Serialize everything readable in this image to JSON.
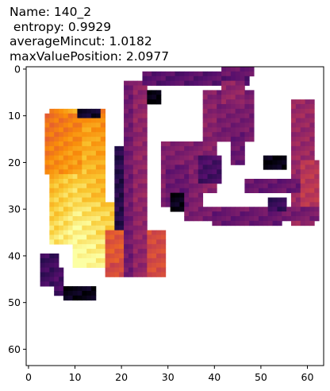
{
  "title_lines": [
    "Name: 140_2",
    " entropy: 0.9929",
    "averageMincut: 1.0182",
    "maxValuePosition: 2.0977"
  ],
  "chart_data": {
    "type": "heatmap",
    "colormap": "inferno",
    "grid_size": [
      64,
      64
    ],
    "x_axis": {
      "ticks": [
        0,
        10,
        20,
        30,
        40,
        50,
        60
      ],
      "range": [
        -0.5,
        63.5
      ]
    },
    "y_axis": {
      "ticks": [
        0,
        10,
        20,
        30,
        40,
        50,
        60
      ],
      "range": [
        -0.5,
        63.5
      ],
      "inverted": true
    },
    "grid": false,
    "background": "#ffffff",
    "regions": [
      {
        "name": "yellow-body",
        "x": [
          5,
          16
        ],
        "y": [
          9,
          37
        ],
        "value": 0.8
      },
      {
        "name": "yellow-upper",
        "x": [
          4,
          11
        ],
        "y": [
          10,
          22
        ],
        "value": 0.72
      },
      {
        "name": "yellow-lower",
        "x": [
          10,
          19
        ],
        "y": [
          29,
          42
        ],
        "value": 0.82
      },
      {
        "name": "orange-block",
        "x": [
          17,
          29
        ],
        "y": [
          35,
          44
        ],
        "value": 0.58
      },
      {
        "name": "orange-patch",
        "x": [
          17,
          23
        ],
        "y": [
          35,
          41
        ],
        "value": 0.62
      },
      {
        "name": "left-dark-bar",
        "x": [
          3,
          6
        ],
        "y": [
          40,
          46
        ],
        "value": 0.2
      },
      {
        "name": "left-dark-bar-2",
        "x": [
          6,
          7
        ],
        "y": [
          43,
          48
        ],
        "value": 0.22
      },
      {
        "name": "bottom-dark",
        "x": [
          8,
          14
        ],
        "y": [
          47,
          49
        ],
        "value": 0.04
      },
      {
        "name": "top-dark",
        "x": [
          11,
          15
        ],
        "y": [
          9,
          10
        ],
        "value": 0.08
      },
      {
        "name": "column-a",
        "x": [
          21,
          23
        ],
        "y": [
          3,
          44
        ],
        "value": 0.32
      },
      {
        "name": "column-b",
        "x": [
          23,
          25
        ],
        "y": [
          3,
          44
        ],
        "value": 0.4
      },
      {
        "name": "column-c",
        "x": [
          19,
          20
        ],
        "y": [
          17,
          34
        ],
        "value": 0.14
      },
      {
        "name": "top-bar",
        "x": [
          25,
          47
        ],
        "y": [
          1,
          3
        ],
        "value": 0.26
      },
      {
        "name": "top-right-bar",
        "x": [
          42,
          48
        ],
        "y": [
          0,
          1
        ],
        "value": 0.3
      },
      {
        "name": "small-dark",
        "x": [
          26,
          28
        ],
        "y": [
          5,
          7
        ],
        "value": 0.02
      },
      {
        "name": "mid-block",
        "x": [
          29,
          37
        ],
        "y": [
          16,
          29
        ],
        "value": 0.36
      },
      {
        "name": "mid-block-2",
        "x": [
          30,
          34
        ],
        "y": [
          21,
          29
        ],
        "value": 0.3
      },
      {
        "name": "dark-small-mid",
        "x": [
          31,
          33
        ],
        "y": [
          27,
          30
        ],
        "value": 0.04
      },
      {
        "name": "right-cluster",
        "x": [
          40,
          48
        ],
        "y": [
          5,
          15
        ],
        "value": 0.34
      },
      {
        "name": "right-cluster-2",
        "x": [
          42,
          46
        ],
        "y": [
          3,
          7
        ],
        "value": 0.4
      },
      {
        "name": "vert-b",
        "x": [
          38,
          40
        ],
        "y": [
          5,
          26
        ],
        "value": 0.38
      },
      {
        "name": "vert-c",
        "x": [
          44,
          46
        ],
        "y": [
          14,
          20
        ],
        "value": 0.3
      },
      {
        "name": "mid-right",
        "x": [
          37,
          41
        ],
        "y": [
          19,
          24
        ],
        "value": 0.22
      },
      {
        "name": "right-col",
        "x": [
          57,
          61
        ],
        "y": [
          7,
          33
        ],
        "value": 0.42
      },
      {
        "name": "right-col-2",
        "x": [
          59,
          62
        ],
        "y": [
          20,
          29
        ],
        "value": 0.5
      },
      {
        "name": "right-dark",
        "x": [
          51,
          55
        ],
        "y": [
          19,
          21
        ],
        "value": 0.03
      },
      {
        "name": "right-mid-bar",
        "x": [
          47,
          58
        ],
        "y": [
          24,
          26
        ],
        "value": 0.3
      },
      {
        "name": "bottom-bar",
        "x": [
          34,
          62
        ],
        "y": [
          30,
          32
        ],
        "value": 0.34
      },
      {
        "name": "bottom-bar-2",
        "x": [
          40,
          54
        ],
        "y": [
          31,
          33
        ],
        "value": 0.3
      },
      {
        "name": "right-small",
        "x": [
          52,
          55
        ],
        "y": [
          28,
          30
        ],
        "value": 0.18
      }
    ]
  }
}
